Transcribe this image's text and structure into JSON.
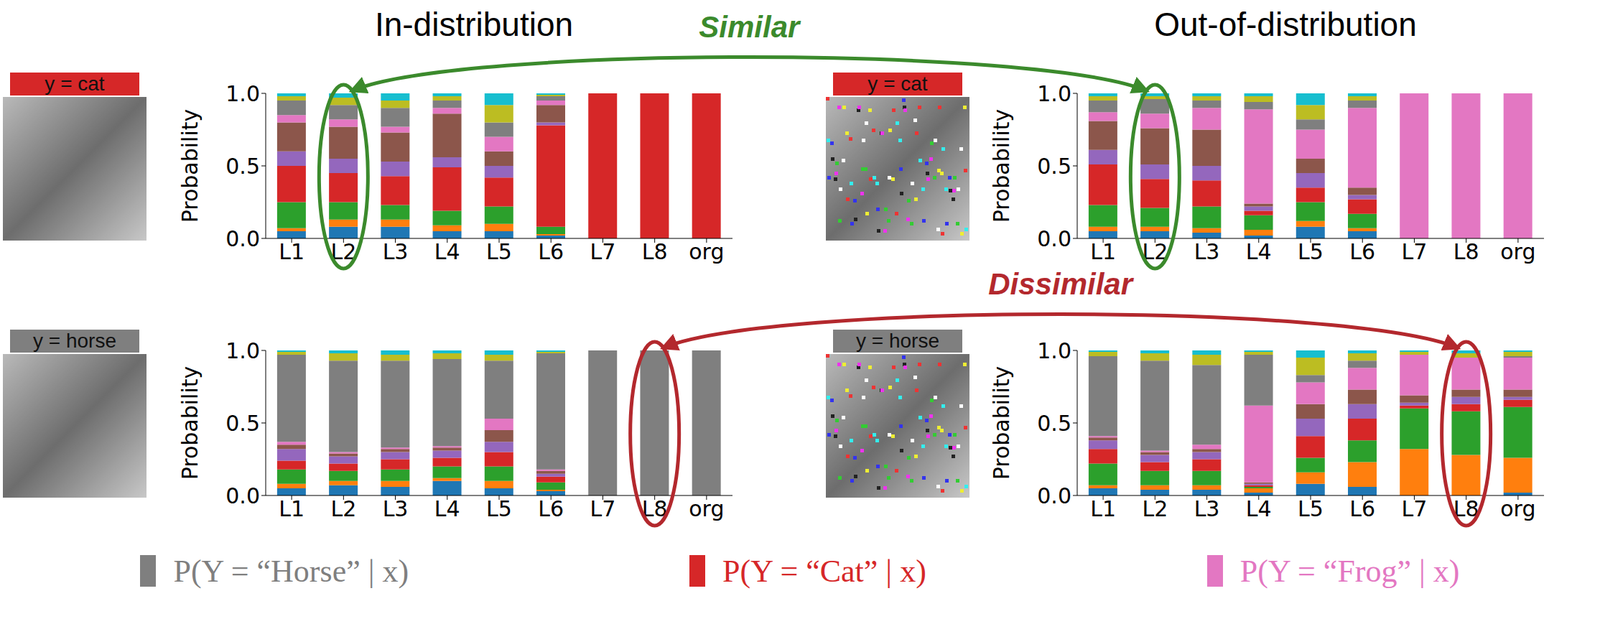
{
  "columns": [
    "In-distribution",
    "Out-of-distribution"
  ],
  "legend": "bottom",
  "legend_order": [
    "P(Y = “Horse” | x)",
    "P(Y = “Cat” | x)",
    "P(Y = “Frog” | x)"
  ],
  "annotations": [
    {
      "text": "Similar",
      "color": "#3b8a2c",
      "category": "L2",
      "charts": [
        0,
        1
      ]
    },
    {
      "text": "Dissimilar",
      "color": "#b3282d",
      "category": "L8",
      "charts": [
        2,
        3
      ]
    }
  ],
  "chart_data": [
    {
      "type": "bar",
      "stacked": true,
      "grid": false,
      "y_label": "Probability",
      "image_label": {
        "text": "y = cat",
        "color": "#d62728"
      },
      "categories": [
        "L1",
        "L2",
        "L3",
        "L4",
        "L5",
        "L6",
        "L7",
        "L8",
        "org"
      ],
      "ylim": [
        0,
        1
      ],
      "yticks": [
        {
          "value": 0,
          "label": "0.0"
        },
        0.5,
        {
          "value": 1,
          "label": "1.0"
        }
      ],
      "series": [
        {
          "color": "#1f77b4",
          "values": [
            0.05,
            0.08,
            0.08,
            0.05,
            0.05,
            0.02,
            0,
            0,
            0
          ]
        },
        {
          "color": "#ff7f0e",
          "values": [
            0.02,
            0.05,
            0.05,
            0.04,
            0.05,
            0.01,
            0,
            0,
            0
          ]
        },
        {
          "color": "#2ca02c",
          "values": [
            0.18,
            0.12,
            0.1,
            0.1,
            0.12,
            0.05,
            0,
            0,
            0
          ]
        },
        {
          "name": "P(Y = “Cat” | x)",
          "color": "#d62728",
          "values": [
            0.25,
            0.2,
            0.2,
            0.3,
            0.2,
            0.7,
            1,
            1,
            1
          ]
        },
        {
          "color": "#9467bd",
          "values": [
            0.1,
            0.1,
            0.1,
            0.07,
            0.08,
            0.02,
            0,
            0,
            0
          ]
        },
        {
          "color": "#8c564b",
          "values": [
            0.2,
            0.22,
            0.2,
            0.3,
            0.1,
            0.12,
            0,
            0,
            0
          ]
        },
        {
          "name": "P(Y = “Frog” | x)",
          "color": "#e377c2",
          "values": [
            0.05,
            0.05,
            0.04,
            0.04,
            0.1,
            0.03,
            0,
            0,
            0
          ]
        },
        {
          "name": "P(Y = “Horse” | x)",
          "color": "#7f7f7f",
          "values": [
            0.1,
            0.1,
            0.13,
            0.05,
            0.1,
            0.03,
            0,
            0,
            0
          ]
        },
        {
          "color": "#bcbd22",
          "values": [
            0.03,
            0.05,
            0.05,
            0.03,
            0.12,
            0.01,
            0,
            0,
            0
          ]
        },
        {
          "color": "#17becf",
          "values": [
            0.02,
            0.03,
            0.05,
            0.02,
            0.08,
            0.01,
            0,
            0,
            0
          ]
        }
      ]
    },
    {
      "type": "bar",
      "stacked": true,
      "grid": false,
      "y_label": "Probability",
      "image_label": {
        "text": "y = cat",
        "color": "#d62728"
      },
      "categories": [
        "L1",
        "L2",
        "L3",
        "L4",
        "L5",
        "L6",
        "L7",
        "L8",
        "org"
      ],
      "ylim": [
        0,
        1
      ],
      "yticks": [
        {
          "value": 0,
          "label": "0.0"
        },
        0.5,
        {
          "value": 1,
          "label": "1.0"
        }
      ],
      "series": [
        {
          "color": "#1f77b4",
          "values": [
            0.05,
            0.05,
            0.04,
            0.02,
            0.08,
            0.05,
            0,
            0,
            0
          ]
        },
        {
          "color": "#ff7f0e",
          "values": [
            0.03,
            0.03,
            0.03,
            0.04,
            0.04,
            0.02,
            0,
            0,
            0
          ]
        },
        {
          "color": "#2ca02c",
          "values": [
            0.15,
            0.13,
            0.15,
            0.1,
            0.13,
            0.1,
            0,
            0,
            0
          ]
        },
        {
          "name": "P(Y = “Cat” | x)",
          "color": "#d62728",
          "values": [
            0.28,
            0.2,
            0.18,
            0.03,
            0.1,
            0.1,
            0,
            0,
            0
          ]
        },
        {
          "color": "#9467bd",
          "values": [
            0.1,
            0.1,
            0.1,
            0.03,
            0.1,
            0.03,
            0,
            0,
            0
          ]
        },
        {
          "color": "#8c564b",
          "values": [
            0.2,
            0.25,
            0.25,
            0.02,
            0.1,
            0.05,
            0,
            0,
            0
          ]
        },
        {
          "name": "P(Y = “Frog” | x)",
          "color": "#e377c2",
          "values": [
            0.06,
            0.1,
            0.15,
            0.65,
            0.2,
            0.55,
            1,
            1,
            1
          ]
        },
        {
          "name": "P(Y = “Horse” | x)",
          "color": "#7f7f7f",
          "values": [
            0.08,
            0.1,
            0.05,
            0.05,
            0.07,
            0.05,
            0,
            0,
            0
          ]
        },
        {
          "color": "#bcbd22",
          "values": [
            0.03,
            0.02,
            0.03,
            0.04,
            0.1,
            0.03,
            0,
            0,
            0
          ]
        },
        {
          "color": "#17becf",
          "values": [
            0.02,
            0.02,
            0.02,
            0.02,
            0.08,
            0.02,
            0,
            0,
            0
          ]
        }
      ]
    },
    {
      "type": "bar",
      "stacked": true,
      "grid": false,
      "y_label": "Probability",
      "image_label": {
        "text": "y = horse",
        "color": "#7f7f7f"
      },
      "categories": [
        "L1",
        "L2",
        "L3",
        "L4",
        "L5",
        "L6",
        "L7",
        "L8",
        "org"
      ],
      "ylim": [
        0,
        1
      ],
      "yticks": [
        {
          "value": 0,
          "label": "0.0"
        },
        0.5,
        {
          "value": 1,
          "label": "1.0"
        }
      ],
      "series": [
        {
          "color": "#1f77b4",
          "values": [
            0.05,
            0.07,
            0.06,
            0.1,
            0.05,
            0.03,
            0,
            0,
            0
          ]
        },
        {
          "color": "#ff7f0e",
          "values": [
            0.03,
            0.03,
            0.04,
            0.02,
            0.05,
            0.01,
            0,
            0,
            0
          ]
        },
        {
          "color": "#2ca02c",
          "values": [
            0.1,
            0.07,
            0.08,
            0.08,
            0.1,
            0.05,
            0,
            0,
            0
          ]
        },
        {
          "name": "P(Y = “Cat” | x)",
          "color": "#d62728",
          "values": [
            0.06,
            0.05,
            0.07,
            0.06,
            0.1,
            0.04,
            0,
            0,
            0
          ]
        },
        {
          "color": "#9467bd",
          "values": [
            0.08,
            0.05,
            0.05,
            0.05,
            0.07,
            0.02,
            0,
            0,
            0
          ]
        },
        {
          "color": "#8c564b",
          "values": [
            0.03,
            0.02,
            0.02,
            0.02,
            0.08,
            0.02,
            0,
            0,
            0
          ]
        },
        {
          "name": "P(Y = “Frog” | x)",
          "color": "#e377c2",
          "values": [
            0.02,
            0.01,
            0.01,
            0.01,
            0.08,
            0.01,
            0,
            0,
            0
          ]
        },
        {
          "name": "P(Y = “Horse” | x)",
          "color": "#7f7f7f",
          "values": [
            0.6,
            0.63,
            0.6,
            0.6,
            0.4,
            0.8,
            1,
            1,
            1
          ]
        },
        {
          "color": "#bcbd22",
          "values": [
            0.02,
            0.05,
            0.04,
            0.04,
            0.04,
            0.01,
            0,
            0,
            0
          ]
        },
        {
          "color": "#17becf",
          "values": [
            0.01,
            0.02,
            0.03,
            0.02,
            0.03,
            0.01,
            0,
            0,
            0
          ]
        }
      ]
    },
    {
      "type": "bar",
      "stacked": true,
      "grid": false,
      "y_label": "Probability",
      "image_label": {
        "text": "y = horse",
        "color": "#7f7f7f"
      },
      "categories": [
        "L1",
        "L2",
        "L3",
        "L4",
        "L5",
        "L6",
        "L7",
        "L8",
        "org"
      ],
      "ylim": [
        0,
        1
      ],
      "yticks": [
        {
          "value": 0,
          "label": "0.0"
        },
        0.5,
        {
          "value": 1,
          "label": "1.0"
        }
      ],
      "series": [
        {
          "color": "#1f77b4",
          "values": [
            0.05,
            0.04,
            0.04,
            0.02,
            0.08,
            0.06,
            0,
            0,
            0.02
          ]
        },
        {
          "color": "#ff7f0e",
          "values": [
            0.02,
            0.03,
            0.03,
            0.03,
            0.08,
            0.17,
            0.32,
            0.28,
            0.24
          ]
        },
        {
          "color": "#2ca02c",
          "values": [
            0.15,
            0.1,
            0.1,
            0.01,
            0.1,
            0.15,
            0.28,
            0.3,
            0.35
          ]
        },
        {
          "name": "P(Y = “Cat” | x)",
          "color": "#d62728",
          "values": [
            0.1,
            0.06,
            0.08,
            0.01,
            0.15,
            0.15,
            0.02,
            0.05,
            0.05
          ]
        },
        {
          "color": "#9467bd",
          "values": [
            0.06,
            0.05,
            0.05,
            0.01,
            0.12,
            0.1,
            0.02,
            0.05,
            0.02
          ]
        },
        {
          "color": "#8c564b",
          "values": [
            0.02,
            0.02,
            0.02,
            0.01,
            0.1,
            0.1,
            0.05,
            0.05,
            0.05
          ]
        },
        {
          "name": "P(Y = “Frog” | x)",
          "color": "#e377c2",
          "values": [
            0.01,
            0.01,
            0.03,
            0.53,
            0.15,
            0.15,
            0.28,
            0.22,
            0.22
          ]
        },
        {
          "name": "P(Y = “Horse” | x)",
          "color": "#7f7f7f",
          "values": [
            0.55,
            0.62,
            0.55,
            0.35,
            0.05,
            0.05,
            0,
            0,
            0.01
          ]
        },
        {
          "color": "#bcbd22",
          "values": [
            0.03,
            0.05,
            0.07,
            0.02,
            0.12,
            0.05,
            0.02,
            0.03,
            0.03
          ]
        },
        {
          "color": "#17becf",
          "values": [
            0.01,
            0.02,
            0.03,
            0.01,
            0.05,
            0.02,
            0.01,
            0.02,
            0.01
          ]
        }
      ]
    }
  ]
}
